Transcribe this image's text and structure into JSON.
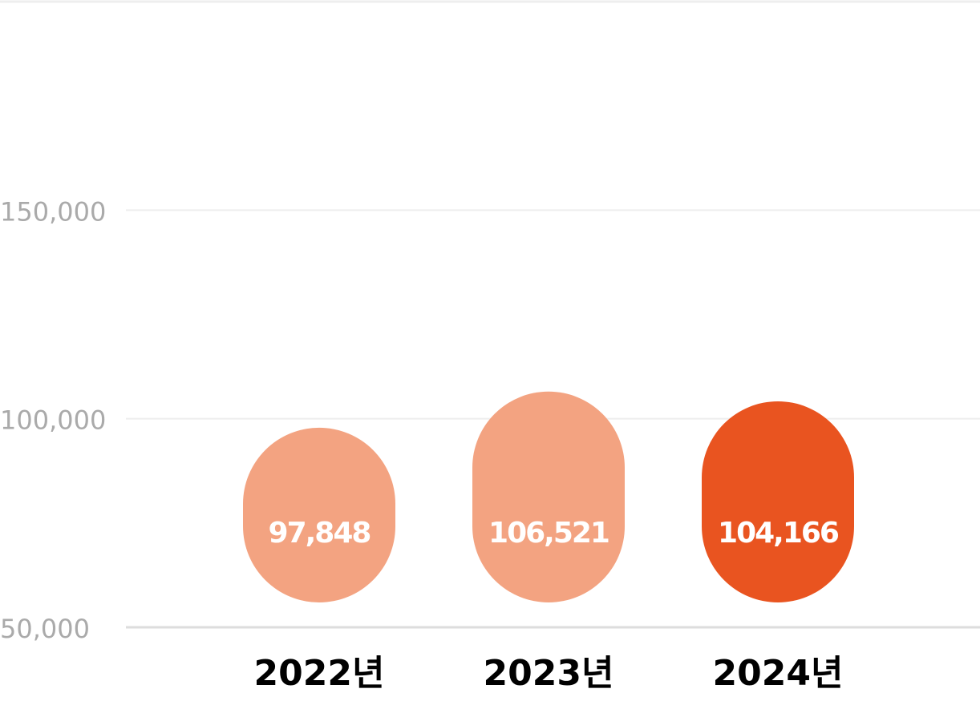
{
  "chart_data": {
    "type": "bar",
    "categories": [
      "2022년",
      "2023년",
      "2024년"
    ],
    "values": [
      97848,
      106521,
      104166
    ],
    "value_labels": [
      "97,848",
      "106,521",
      "104,166"
    ],
    "colors": [
      "#f3a381",
      "#f3a381",
      "#e95420"
    ],
    "ylim": [
      50000,
      200000
    ],
    "yticks": [
      {
        "value": 50000,
        "label": "50,000"
      },
      {
        "value": 100000,
        "label": "100,000"
      },
      {
        "value": 150000,
        "label": "150,000"
      }
    ],
    "grid": true
  }
}
